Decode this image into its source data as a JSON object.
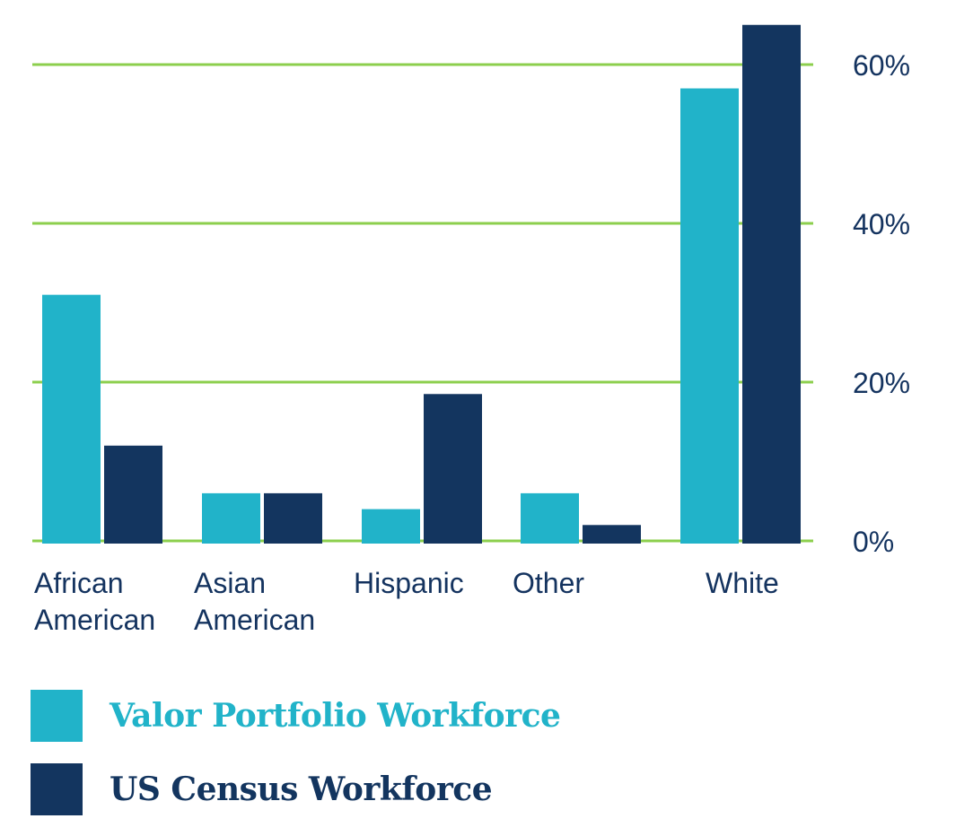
{
  "chart_data": {
    "type": "bar",
    "categories": [
      [
        "African",
        "American"
      ],
      [
        "Asian",
        "American"
      ],
      [
        "Hispanic"
      ],
      [
        "Other"
      ],
      [
        "White"
      ]
    ],
    "series": [
      {
        "name": "Valor Portfolio Workforce",
        "color": "#21b3c9",
        "values": [
          31,
          6,
          4,
          6,
          57
        ]
      },
      {
        "name": "US Census Workforce",
        "color": "#13355f",
        "values": [
          12,
          6,
          18.5,
          2,
          65
        ]
      }
    ],
    "yticks": [
      0,
      20,
      40,
      60
    ],
    "ytick_labels": [
      "0%",
      "20%",
      "40%",
      "60%"
    ],
    "ylim": [
      0,
      65
    ],
    "y_axis_side": "right",
    "grid": true,
    "grid_color": "#8ccf4d",
    "text_color": "#14335f",
    "legend_position": "bottom-left",
    "xlabel": "",
    "ylabel": "",
    "title": ""
  }
}
